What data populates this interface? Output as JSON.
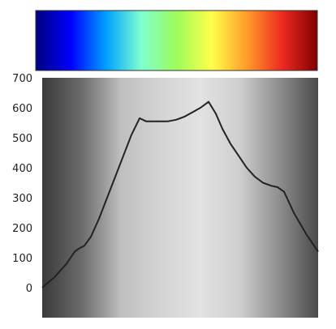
{
  "chart_data": {
    "type": "line",
    "title": "",
    "xlabel": "",
    "ylabel": "",
    "ylim": [
      -100,
      700
    ],
    "yticks": [
      0,
      100,
      200,
      300,
      400,
      500,
      600,
      700
    ],
    "ytick_labels": [
      "0",
      "100",
      "200",
      "300",
      "400",
      "500",
      "600",
      "700"
    ],
    "xlim": [
      0,
      340
    ],
    "grid": false,
    "legend": "none",
    "colorbar": {
      "colormap": "jet",
      "stops": [
        "#00007f",
        "#0000ff",
        "#00a0ff",
        "#7fffd0",
        "#9dfc5a",
        "#ffff4a",
        "#ff9c2a",
        "#ee2a1f",
        "#7f0000"
      ]
    },
    "background": {
      "style": "grayscale gradient",
      "stops": [
        "#3a3a3a",
        "#6b6b6b",
        "#bfbfbf",
        "#d4d4d4",
        "#e2e2e2",
        "#cfcfcf",
        "#8f8f8f",
        "#4a4a4a"
      ]
    },
    "line_color": "#222222",
    "series": [
      {
        "x": [
          0,
          15,
          30,
          40,
          45,
          52,
          60,
          70,
          80,
          90,
          100,
          110,
          120,
          128,
          135,
          145,
          155,
          165,
          175,
          185,
          195,
          205,
          214,
          222,
          232,
          242,
          252,
          262,
          272,
          282,
          290,
          298,
          310,
          325,
          340
        ],
        "values": [
          0,
          35,
          80,
          120,
          130,
          140,
          170,
          230,
          300,
          370,
          440,
          510,
          565,
          555,
          555,
          555,
          555,
          560,
          570,
          585,
          600,
          620,
          580,
          530,
          480,
          440,
          400,
          370,
          350,
          340,
          335,
          320,
          250,
          180,
          120
        ]
      }
    ]
  }
}
